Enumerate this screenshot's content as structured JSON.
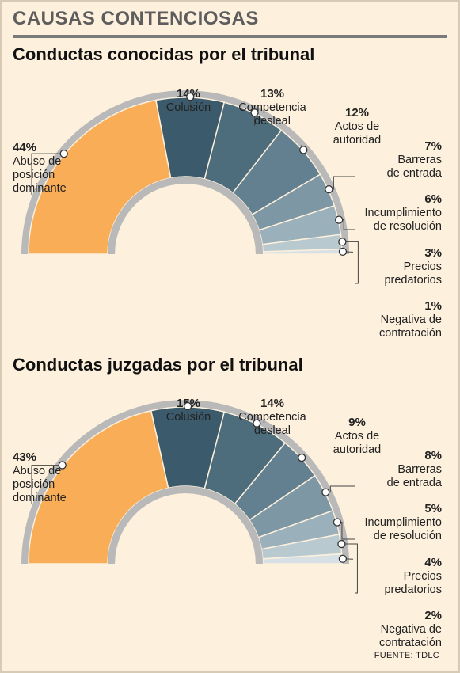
{
  "header": {
    "title": "CAUSAS CONTENCIOSAS"
  },
  "source": "FUENTE: TDLC",
  "chart_data": [
    {
      "type": "pie",
      "title": "Conductas conocidas por el tribunal",
      "series": [
        {
          "label": "Abuso de posición dominante",
          "value": 44,
          "pct": "44%",
          "color": "#f8ad56"
        },
        {
          "label": "Colusión",
          "value": 14,
          "pct": "14%",
          "color": "#3b5a6b"
        },
        {
          "label": "Competencia desleal",
          "value": 13,
          "pct": "13%",
          "color": "#4d6c7c"
        },
        {
          "label": "Actos de autoridad",
          "value": 12,
          "pct": "12%",
          "color": "#62808f"
        },
        {
          "label": "Barreras de entrada",
          "value": 7,
          "pct": "7%",
          "color": "#7d97a5"
        },
        {
          "label": "Incumplimiento de resolución",
          "value": 6,
          "pct": "6%",
          "color": "#9ab0bb"
        },
        {
          "label": "Precios predatorios",
          "value": 3,
          "pct": "3%",
          "color": "#b9c9d0"
        },
        {
          "label": "Negativa de contratación",
          "value": 1,
          "pct": "1%",
          "color": "#d7e1e5"
        }
      ]
    },
    {
      "type": "pie",
      "title": "Conductas juzgadas por el tribunal",
      "series": [
        {
          "label": "Abuso de posición dominante",
          "value": 43,
          "pct": "43%",
          "color": "#f8ad56"
        },
        {
          "label": "Colusión",
          "value": 15,
          "pct": "15%",
          "color": "#3b5a6b"
        },
        {
          "label": "Competencia desleal",
          "value": 14,
          "pct": "14%",
          "color": "#4d6c7c"
        },
        {
          "label": "Actos de autoridad",
          "value": 9,
          "pct": "9%",
          "color": "#62808f"
        },
        {
          "label": "Barreras de entrada",
          "value": 8,
          "pct": "8%",
          "color": "#7d97a5"
        },
        {
          "label": "Incumplimiento de resolución",
          "value": 5,
          "pct": "5%",
          "color": "#9ab0bb"
        },
        {
          "label": "Precios predatorios",
          "value": 4,
          "pct": "4%",
          "color": "#b9c9d0"
        },
        {
          "label": "Negativa de contratación",
          "value": 2,
          "pct": "2%",
          "color": "#d7e1e5"
        }
      ]
    }
  ]
}
